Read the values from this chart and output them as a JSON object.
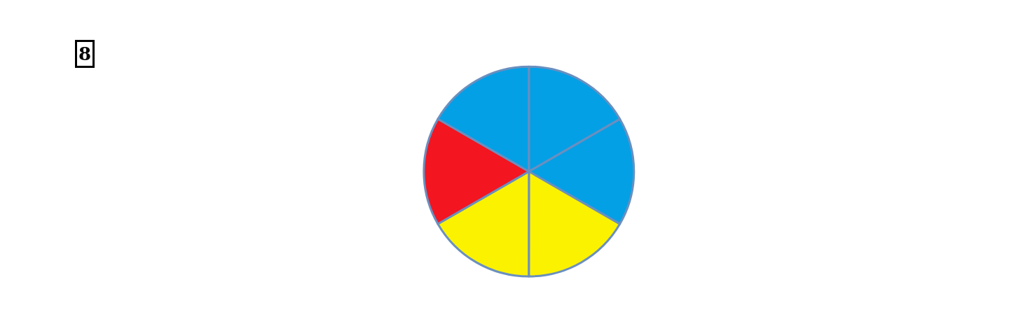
{
  "chart_data": {
    "type": "pie",
    "categories": [
      null,
      null,
      null,
      null,
      null,
      null
    ],
    "values": [
      16.67,
      16.67,
      16.67,
      16.67,
      16.66,
      16.66
    ],
    "colors": [
      "#03a0e6",
      "#03a0e6",
      "#fbf200",
      "#fbf200",
      "#f31520",
      "#03a0e6"
    ],
    "annotations": [
      "8"
    ],
    "legend": false
  }
}
